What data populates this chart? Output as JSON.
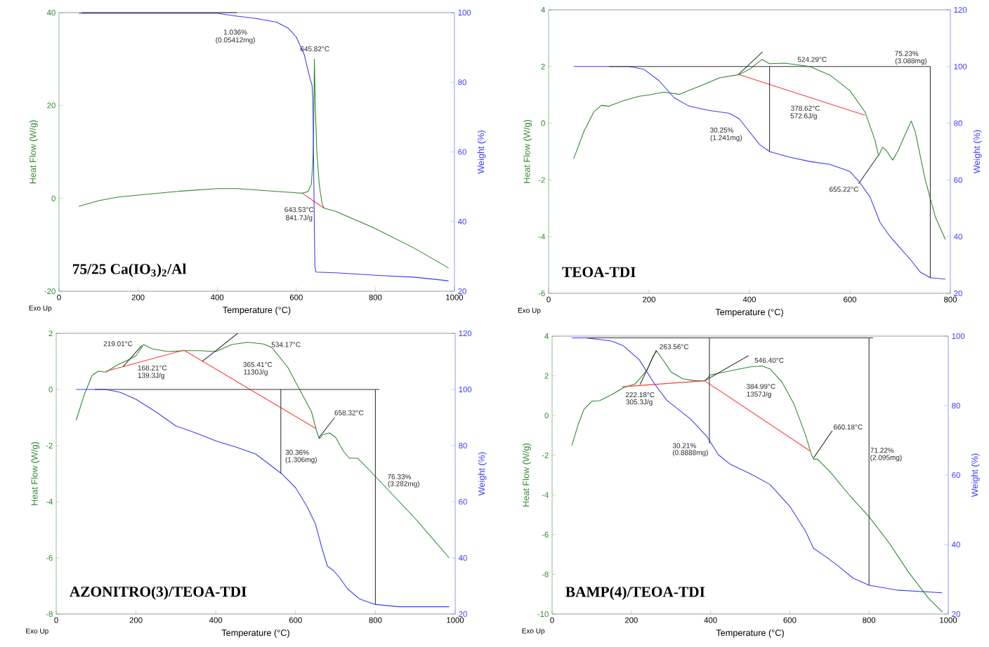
{
  "chart_data": [
    {
      "type": "line",
      "title": "75/25 Ca(IO$_{3}$)$_{2}$/Al",
      "xlabel": "Temperature (°C)",
      "ylabel": "Heat Flow (W/g)",
      "y2label": "Weight (%)",
      "xlim": [
        0,
        1000
      ],
      "xticks": [
        0,
        200,
        400,
        600,
        800,
        1000
      ],
      "ylim": [
        -20,
        40
      ],
      "yticks": [
        -20,
        0,
        20,
        40
      ],
      "y2lim": [
        20,
        100
      ],
      "y2ticks": [
        20,
        40,
        60,
        80,
        100
      ],
      "series": [
        {
          "color": "#2b8a2b",
          "x": [
            50,
            100,
            150,
            200,
            300,
            400,
            450,
            500,
            600,
            615,
            630,
            638,
            642,
            644,
            645.8,
            648,
            652,
            658,
            665,
            670,
            700,
            800,
            900,
            985
          ],
          "values": [
            -1.7,
            -0.5,
            0.3,
            0.7,
            1.5,
            2.1,
            2.1,
            1.8,
            1.2,
            1.1,
            1.5,
            3,
            8,
            15,
            30,
            20,
            10,
            3,
            -1,
            -2.1,
            -2.8,
            -6.5,
            -10.8,
            -15
          ]
        },
        {
          "axis": "y2",
          "color": "#3a3aff",
          "x": [
            50,
            400,
            450,
            500,
            550,
            580,
            600,
            620,
            635,
            640,
            642,
            645,
            647,
            650,
            700,
            800,
            900,
            985
          ],
          "values": [
            99.8,
            99.8,
            99,
            98.3,
            97.3,
            95.5,
            93,
            88,
            81,
            79,
            75,
            45,
            27,
            25.5,
            25.3,
            24.6,
            24,
            23
          ]
        },
        {
          "color": "#ff3b3b",
          "x": [
            615,
            670
          ],
          "values": [
            1.1,
            -2.1
          ]
        },
        {
          "axis": "y2",
          "color": "#333333",
          "x": [
            57,
            450
          ],
          "values": [
            100,
            100
          ]
        }
      ],
      "annotations": [
        "Exo Up",
        "1.036%",
        "(0.05412mg)",
        "645.82°C",
        "643.53°C",
        "841.7J/g"
      ]
    },
    {
      "type": "line",
      "title": "TEOA-TDI",
      "xlabel": "Temperature (°C)",
      "ylabel": "Heat Flow (W/g)",
      "y2label": "Weight (%)",
      "xlim": [
        0,
        800
      ],
      "xticks": [
        0,
        200,
        400,
        600,
        800
      ],
      "ylim": [
        -6,
        4
      ],
      "yticks": [
        -6,
        -4,
        -2,
        0,
        2,
        4
      ],
      "y2lim": [
        20,
        120
      ],
      "y2ticks": [
        20,
        40,
        60,
        80,
        100,
        120
      ],
      "series": [
        {
          "color": "#2b8a2b",
          "x": [
            50,
            70,
            90,
            105,
            120,
            150,
            180,
            200,
            230,
            260,
            300,
            340,
            380,
            400,
            425,
            440,
            470,
            520,
            560,
            600,
            630,
            650,
            657,
            665,
            672,
            685,
            695,
            710,
            722,
            730,
            750,
            770,
            790
          ],
          "values": [
            -1.25,
            -0.3,
            0.4,
            0.63,
            0.6,
            0.8,
            0.95,
            1.0,
            1.1,
            1.02,
            1.3,
            1.6,
            1.72,
            1.9,
            2.25,
            2.1,
            2.12,
            2.0,
            1.7,
            1.15,
            0.4,
            -0.6,
            -1.15,
            -0.85,
            -0.95,
            -1.3,
            -1.0,
            -0.4,
            0.08,
            -0.3,
            -2.0,
            -3.3,
            -4.1
          ]
        },
        {
          "axis": "y2",
          "color": "#3a3aff",
          "x": [
            50,
            120,
            160,
            190,
            220,
            250,
            280,
            320,
            360,
            380,
            400,
            420,
            440,
            480,
            520,
            560,
            600,
            620,
            640,
            660,
            680,
            700,
            720,
            740,
            760,
            790
          ],
          "values": [
            100,
            100,
            100,
            99,
            95,
            89,
            86,
            84.5,
            83.5,
            81.5,
            77,
            72.5,
            70,
            68,
            66.5,
            65.5,
            63,
            59,
            54,
            45,
            40,
            36,
            32,
            27.5,
            25.5,
            25
          ]
        },
        {
          "color": "#ff3b3b",
          "x": [
            378,
            630
          ],
          "values": [
            1.72,
            0.28
          ]
        },
        {
          "color": "#333333",
          "x": [
            378,
            426
          ],
          "values": [
            1.72,
            2.52
          ]
        },
        {
          "color": "#333333",
          "x": [
            656,
            617
          ],
          "values": [
            -1.15,
            -2.14
          ]
        },
        {
          "axis": "y2",
          "color": "#333333",
          "x": [
            120,
            760
          ],
          "values": [
            100,
            100
          ]
        },
        {
          "axis": "y2",
          "color": "#333333",
          "x": [
            440,
            440
          ],
          "values": [
            100,
            70
          ]
        },
        {
          "axis": "y2",
          "color": "#333333",
          "x": [
            760,
            760
          ],
          "values": [
            100,
            25.3
          ]
        }
      ],
      "annotations": [
        "Exo Up",
        "524.29°C",
        "75.23%",
        "(3.088mg)",
        "378.62°C",
        "572.6J/g",
        "30.25%",
        "(1.241mg)",
        "655.22°C"
      ]
    },
    {
      "type": "line",
      "title": "AZONITRO(3)/TEOA-TDI",
      "xlabel": "Temperature (°C)",
      "ylabel": "Heat Flow (W/g)",
      "y2label": "Weight (%)",
      "xlim": [
        0,
        1000
      ],
      "xticks": [
        0,
        200,
        400,
        600,
        800,
        1000
      ],
      "ylim": [
        -8,
        2
      ],
      "yticks": [
        -8,
        -6,
        -4,
        -2,
        0,
        2
      ],
      "y2lim": [
        20,
        120
      ],
      "y2ticks": [
        20,
        40,
        60,
        80,
        100,
        120
      ],
      "series": [
        {
          "color": "#2b8a2b",
          "x": [
            50,
            70,
            90,
            105,
            125,
            150,
            180,
            200,
            219,
            240,
            280,
            320,
            360,
            400,
            440,
            480,
            520,
            540,
            580,
            610,
            640,
            655,
            660,
            670,
            685,
            700,
            720,
            735,
            755,
            780,
            800,
            900,
            985
          ],
          "values": [
            -1.1,
            -0.2,
            0.5,
            0.65,
            0.62,
            0.85,
            1.05,
            1.2,
            1.6,
            1.45,
            1.35,
            1.38,
            1.38,
            1.35,
            1.6,
            1.68,
            1.62,
            1.5,
            0.8,
            0,
            -0.8,
            -1.6,
            -1.75,
            -1.6,
            -1.55,
            -1.7,
            -2.2,
            -2.45,
            -2.45,
            -2.8,
            -3.1,
            -4.6,
            -6.0
          ]
        },
        {
          "axis": "y2",
          "color": "#3a3aff",
          "x": [
            50,
            125,
            160,
            200,
            250,
            300,
            350,
            400,
            450,
            500,
            565,
            600,
            630,
            650,
            665,
            680,
            695,
            710,
            730,
            760,
            800,
            860,
            985
          ],
          "values": [
            100,
            100,
            99,
            96.5,
            92,
            87,
            84.5,
            81.7,
            79.5,
            77,
            70,
            65,
            58,
            52,
            44,
            37,
            35.5,
            33,
            29,
            25.4,
            23.4,
            22.6,
            22.6
          ]
        },
        {
          "color": "#ff3b3b",
          "x": [
            125,
            320
          ],
          "values": [
            0.65,
            1.4
          ]
        },
        {
          "color": "#ff3b3b",
          "x": [
            320,
            652
          ],
          "values": [
            1.4,
            -1.4
          ]
        },
        {
          "color": "#333333",
          "x": [
            168,
            215
          ],
          "values": [
            0.82,
            1.57
          ]
        },
        {
          "color": "#333333",
          "x": [
            366,
            455
          ],
          "values": [
            1.0,
            2.0
          ]
        },
        {
          "color": "#333333",
          "x": [
            658,
            698
          ],
          "values": [
            -1.73,
            -1.0
          ]
        },
        {
          "axis": "y2",
          "color": "#333333",
          "x": [
            97,
            810
          ],
          "values": [
            100,
            100
          ]
        },
        {
          "axis": "y2",
          "color": "#333333",
          "x": [
            563,
            563
          ],
          "values": [
            100,
            70
          ]
        },
        {
          "axis": "y2",
          "color": "#333333",
          "x": [
            800,
            800
          ],
          "values": [
            100,
            23.4
          ]
        }
      ],
      "annotations": [
        "Exo Up",
        "219.01°C",
        "168.21°C",
        "139.3J/g",
        "534.17°C",
        "365.41°C",
        "1130J/g",
        "658.32°C",
        "30.36%",
        "(1.306mg)",
        "76.33%",
        "(3.282mg)"
      ]
    },
    {
      "type": "line",
      "title": "BAMP(4)/TEOA-TDI",
      "xlabel": "Temperature (°C)",
      "ylabel": "Heat Flow (W/g)",
      "y2label": "Weight (%)",
      "xlim": [
        0,
        1000
      ],
      "xticks": [
        0,
        200,
        400,
        600,
        800,
        1000
      ],
      "ylim": [
        -10,
        4
      ],
      "yticks": [
        -10,
        -8,
        -6,
        -4,
        -2,
        0,
        2,
        4
      ],
      "y2lim": [
        20,
        100
      ],
      "y2ticks": [
        20,
        40,
        60,
        80,
        100
      ],
      "series": [
        {
          "color": "#2b8a2b",
          "x": [
            50,
            65,
            80,
            100,
            120,
            150,
            180,
            210,
            240,
            255,
            264,
            280,
            300,
            330,
            360,
            385,
            400,
            450,
            500,
            530,
            550,
            580,
            610,
            640,
            655,
            660,
            670,
            700,
            750,
            800,
            850,
            900,
            950,
            985
          ],
          "values": [
            -1.5,
            -0.5,
            0.3,
            0.72,
            0.75,
            1.05,
            1.4,
            1.6,
            2.3,
            3.0,
            3.25,
            2.8,
            2.2,
            1.85,
            1.75,
            1.75,
            2.05,
            2.25,
            2.45,
            2.5,
            2.35,
            1.7,
            0.6,
            -1.0,
            -2.0,
            -2.2,
            -2.2,
            -2.8,
            -4.0,
            -5.1,
            -6.4,
            -7.9,
            -9.2,
            -9.9
          ]
        },
        {
          "axis": "y2",
          "color": "#3a3aff",
          "x": [
            50,
            85,
            150,
            180,
            220,
            260,
            290,
            350,
            390,
            420,
            450,
            500,
            550,
            600,
            640,
            660,
            690,
            720,
            760,
            800,
            870,
            985
          ],
          "values": [
            99.5,
            99.5,
            98.6,
            97.2,
            93.2,
            86,
            81.5,
            76.1,
            71.2,
            65.8,
            63.1,
            60.4,
            57.3,
            51,
            43.8,
            38.9,
            36.6,
            34,
            30.3,
            28.3,
            26.9,
            26.1
          ]
        },
        {
          "color": "#ff3b3b",
          "x": [
            177,
            385
          ],
          "values": [
            1.45,
            1.75
          ]
        },
        {
          "color": "#ff3b3b",
          "x": [
            385,
            652
          ],
          "values": [
            1.75,
            -1.8
          ]
        },
        {
          "color": "#333333",
          "x": [
            222,
            263
          ],
          "values": [
            1.56,
            3.29
          ]
        },
        {
          "color": "#333333",
          "x": [
            385,
            496
          ],
          "values": [
            1.75,
            3.02
          ]
        },
        {
          "color": "#333333",
          "x": [
            660,
            707
          ],
          "values": [
            -2.14,
            -0.77
          ]
        },
        {
          "axis": "y2",
          "color": "#333333",
          "x": [
            85,
            810
          ],
          "values": [
            99.5,
            99.5
          ]
        },
        {
          "axis": "y2",
          "color": "#333333",
          "x": [
            397,
            397
          ],
          "values": [
            99.5,
            69.1
          ]
        },
        {
          "axis": "y2",
          "color": "#333333",
          "x": [
            800,
            800
          ],
          "values": [
            99.5,
            28.3
          ]
        }
      ],
      "annotations": [
        "Exo Up",
        "263.56°C",
        "546.40°C",
        "222.18°C",
        "305.3J/g",
        "384.99°C",
        "1357J/g",
        "660.18°C",
        "30.21%",
        "(0.8888mg)",
        "71.22%",
        "(2.095mg)"
      ]
    }
  ]
}
